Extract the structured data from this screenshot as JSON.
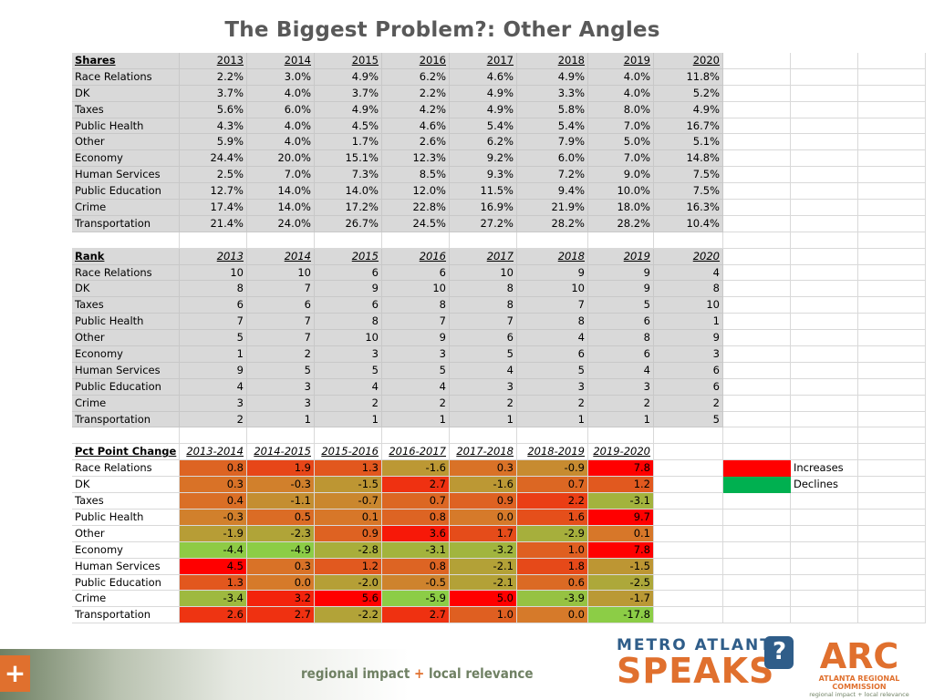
{
  "title": "The Biggest Problem?: Other Angles",
  "shares": {
    "header": "Shares",
    "years": [
      "2013",
      "2014",
      "2015",
      "2016",
      "2017",
      "2018",
      "2019",
      "2020"
    ],
    "rows": [
      {
        "label": "Race Relations",
        "values": [
          "2.2%",
          "3.0%",
          "4.9%",
          "6.2%",
          "4.6%",
          "4.9%",
          "4.0%",
          "11.8%"
        ]
      },
      {
        "label": "DK",
        "values": [
          "3.7%",
          "4.0%",
          "3.7%",
          "2.2%",
          "4.9%",
          "3.3%",
          "4.0%",
          "5.2%"
        ]
      },
      {
        "label": "Taxes",
        "values": [
          "5.6%",
          "6.0%",
          "4.9%",
          "4.2%",
          "4.9%",
          "5.8%",
          "8.0%",
          "4.9%"
        ]
      },
      {
        "label": "Public Health",
        "values": [
          "4.3%",
          "4.0%",
          "4.5%",
          "4.6%",
          "5.4%",
          "5.4%",
          "7.0%",
          "16.7%"
        ]
      },
      {
        "label": "Other",
        "values": [
          "5.9%",
          "4.0%",
          "1.7%",
          "2.6%",
          "6.2%",
          "7.9%",
          "5.0%",
          "5.1%"
        ]
      },
      {
        "label": "Economy",
        "values": [
          "24.4%",
          "20.0%",
          "15.1%",
          "12.3%",
          "9.2%",
          "6.0%",
          "7.0%",
          "14.8%"
        ]
      },
      {
        "label": "Human Services",
        "values": [
          "2.5%",
          "7.0%",
          "7.3%",
          "8.5%",
          "9.3%",
          "7.2%",
          "9.0%",
          "7.5%"
        ]
      },
      {
        "label": "Public Education",
        "values": [
          "12.7%",
          "14.0%",
          "14.0%",
          "12.0%",
          "11.5%",
          "9.4%",
          "10.0%",
          "7.5%"
        ]
      },
      {
        "label": "Crime",
        "values": [
          "17.4%",
          "14.0%",
          "17.2%",
          "22.8%",
          "16.9%",
          "21.9%",
          "18.0%",
          "16.3%"
        ]
      },
      {
        "label": "Transportation",
        "values": [
          "21.4%",
          "24.0%",
          "26.7%",
          "24.5%",
          "27.2%",
          "28.2%",
          "28.2%",
          "10.4%"
        ]
      }
    ]
  },
  "rank": {
    "header": "Rank",
    "years": [
      "2013",
      "2014",
      "2015",
      "2016",
      "2017",
      "2018",
      "2019",
      "2020"
    ],
    "rows": [
      {
        "label": "Race Relations",
        "values": [
          "10",
          "10",
          "6",
          "6",
          "10",
          "9",
          "9",
          "4"
        ]
      },
      {
        "label": "DK",
        "values": [
          "8",
          "7",
          "9",
          "10",
          "8",
          "10",
          "9",
          "8"
        ]
      },
      {
        "label": "Taxes",
        "values": [
          "6",
          "6",
          "6",
          "8",
          "8",
          "7",
          "5",
          "10"
        ]
      },
      {
        "label": "Public Health",
        "values": [
          "7",
          "7",
          "8",
          "7",
          "7",
          "8",
          "6",
          "1"
        ]
      },
      {
        "label": "Other",
        "values": [
          "5",
          "7",
          "10",
          "9",
          "6",
          "4",
          "8",
          "9"
        ]
      },
      {
        "label": "Economy",
        "values": [
          "1",
          "2",
          "3",
          "3",
          "5",
          "6",
          "6",
          "3"
        ]
      },
      {
        "label": "Human Services",
        "values": [
          "9",
          "5",
          "5",
          "5",
          "4",
          "5",
          "4",
          "6"
        ]
      },
      {
        "label": "Public Education",
        "values": [
          "4",
          "3",
          "4",
          "4",
          "3",
          "3",
          "3",
          "6"
        ]
      },
      {
        "label": "Crime",
        "values": [
          "3",
          "3",
          "2",
          "2",
          "2",
          "2",
          "2",
          "2"
        ]
      },
      {
        "label": "Transportation",
        "values": [
          "2",
          "1",
          "1",
          "1",
          "1",
          "1",
          "1",
          "5"
        ]
      }
    ]
  },
  "change": {
    "header": "Pct Point Change",
    "periods": [
      "2013-2014",
      "2014-2015",
      "2015-2016",
      "2016-2017",
      "2017-2018",
      "2018-2019",
      "2019-2020"
    ],
    "rows": [
      {
        "label": "Race Relations",
        "values": [
          "0.8",
          "1.9",
          "1.3",
          "-1.6",
          "0.3",
          "-0.9",
          "7.8"
        ]
      },
      {
        "label": "DK",
        "values": [
          "0.3",
          "-0.3",
          "-1.5",
          "2.7",
          "-1.6",
          "0.7",
          "1.2"
        ]
      },
      {
        "label": "Taxes",
        "values": [
          "0.4",
          "-1.1",
          "-0.7",
          "0.7",
          "0.9",
          "2.2",
          "-3.1"
        ]
      },
      {
        "label": "Public Health",
        "values": [
          "-0.3",
          "0.5",
          "0.1",
          "0.8",
          "0.0",
          "1.6",
          "9.7"
        ]
      },
      {
        "label": "Other",
        "values": [
          "-1.9",
          "-2.3",
          "0.9",
          "3.6",
          "1.7",
          "-2.9",
          "0.1"
        ]
      },
      {
        "label": "Economy",
        "values": [
          "-4.4",
          "-4.9",
          "-2.8",
          "-3.1",
          "-3.2",
          "1.0",
          "7.8"
        ]
      },
      {
        "label": "Human Services",
        "values": [
          "4.5",
          "0.3",
          "1.2",
          "0.8",
          "-2.1",
          "1.8",
          "-1.5"
        ]
      },
      {
        "label": "Public Education",
        "values": [
          "1.3",
          "0.0",
          "-2.0",
          "-0.5",
          "-2.1",
          "0.6",
          "-2.5"
        ]
      },
      {
        "label": "Crime",
        "values": [
          "-3.4",
          "3.2",
          "5.6",
          "-5.9",
          "5.0",
          "-3.9",
          "-1.7"
        ]
      },
      {
        "label": "Transportation",
        "values": [
          "2.6",
          "2.7",
          "-2.2",
          "2.7",
          "1.0",
          "0.0",
          "-17.8"
        ]
      }
    ],
    "colors": {
      "increase": "#ff0000",
      "decline": "#00b050",
      "neutral": "#e0d040"
    }
  },
  "legend": [
    {
      "label": "Increases",
      "color": "#ff0000"
    },
    {
      "label": "Declines",
      "color": "#00b050"
    }
  ],
  "footer": {
    "tagline_a": "regional impact",
    "tagline_plus": "+",
    "tagline_b": "local relevance",
    "metro_line1": "METRO ATLANTA",
    "metro_line2": "SPEAKS",
    "arc_logo": "ARC",
    "arc_name": "ATLANTA REGIONAL COMMISSION",
    "arc_tag": "regional impact + local relevance"
  }
}
